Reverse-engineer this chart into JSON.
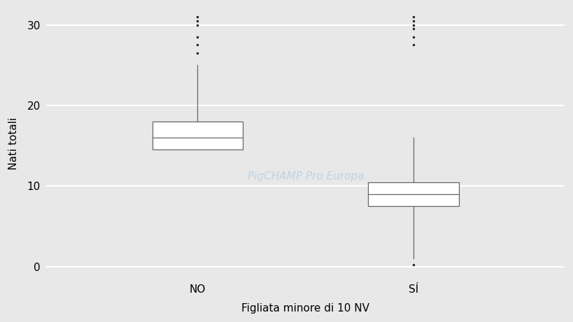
{
  "categories": [
    "NO",
    "SÍ"
  ],
  "xlabel": "Figliata minore di 10 NV",
  "ylabel": "Nati totali",
  "background_color": "#e8e8e8",
  "plot_bg_color": "#e8e8e8",
  "ylim": [
    -1.5,
    32
  ],
  "yticks": [
    0,
    10,
    20,
    30
  ],
  "box_NO": {
    "q1": 14.5,
    "median": 16.0,
    "q3": 18.0,
    "whisker_low": 14.5,
    "whisker_high": 25.0,
    "fliers_high": [
      26.5,
      27.5,
      28.5,
      30.0,
      30.5,
      31.0
    ]
  },
  "box_SI": {
    "q1": 7.5,
    "median": 9.0,
    "q3": 10.5,
    "whisker_low": 1.0,
    "whisker_high": 16.0,
    "fliers_low": [
      0.2
    ],
    "fliers_high": [
      27.5,
      28.5,
      29.5,
      30.0,
      30.5,
      31.0
    ]
  },
  "box_color": "#ffffff",
  "box_edge_color": "#666666",
  "median_color": "#666666",
  "flier_color": "#222222",
  "flier_size": 2.5,
  "box_width": 0.42,
  "xlabel_fontsize": 11,
  "ylabel_fontsize": 11,
  "tick_fontsize": 11,
  "watermark_text": "PigCHAMP Pro Europa",
  "grid_color": "#d4d4d4",
  "grid_linewidth": 1.5
}
